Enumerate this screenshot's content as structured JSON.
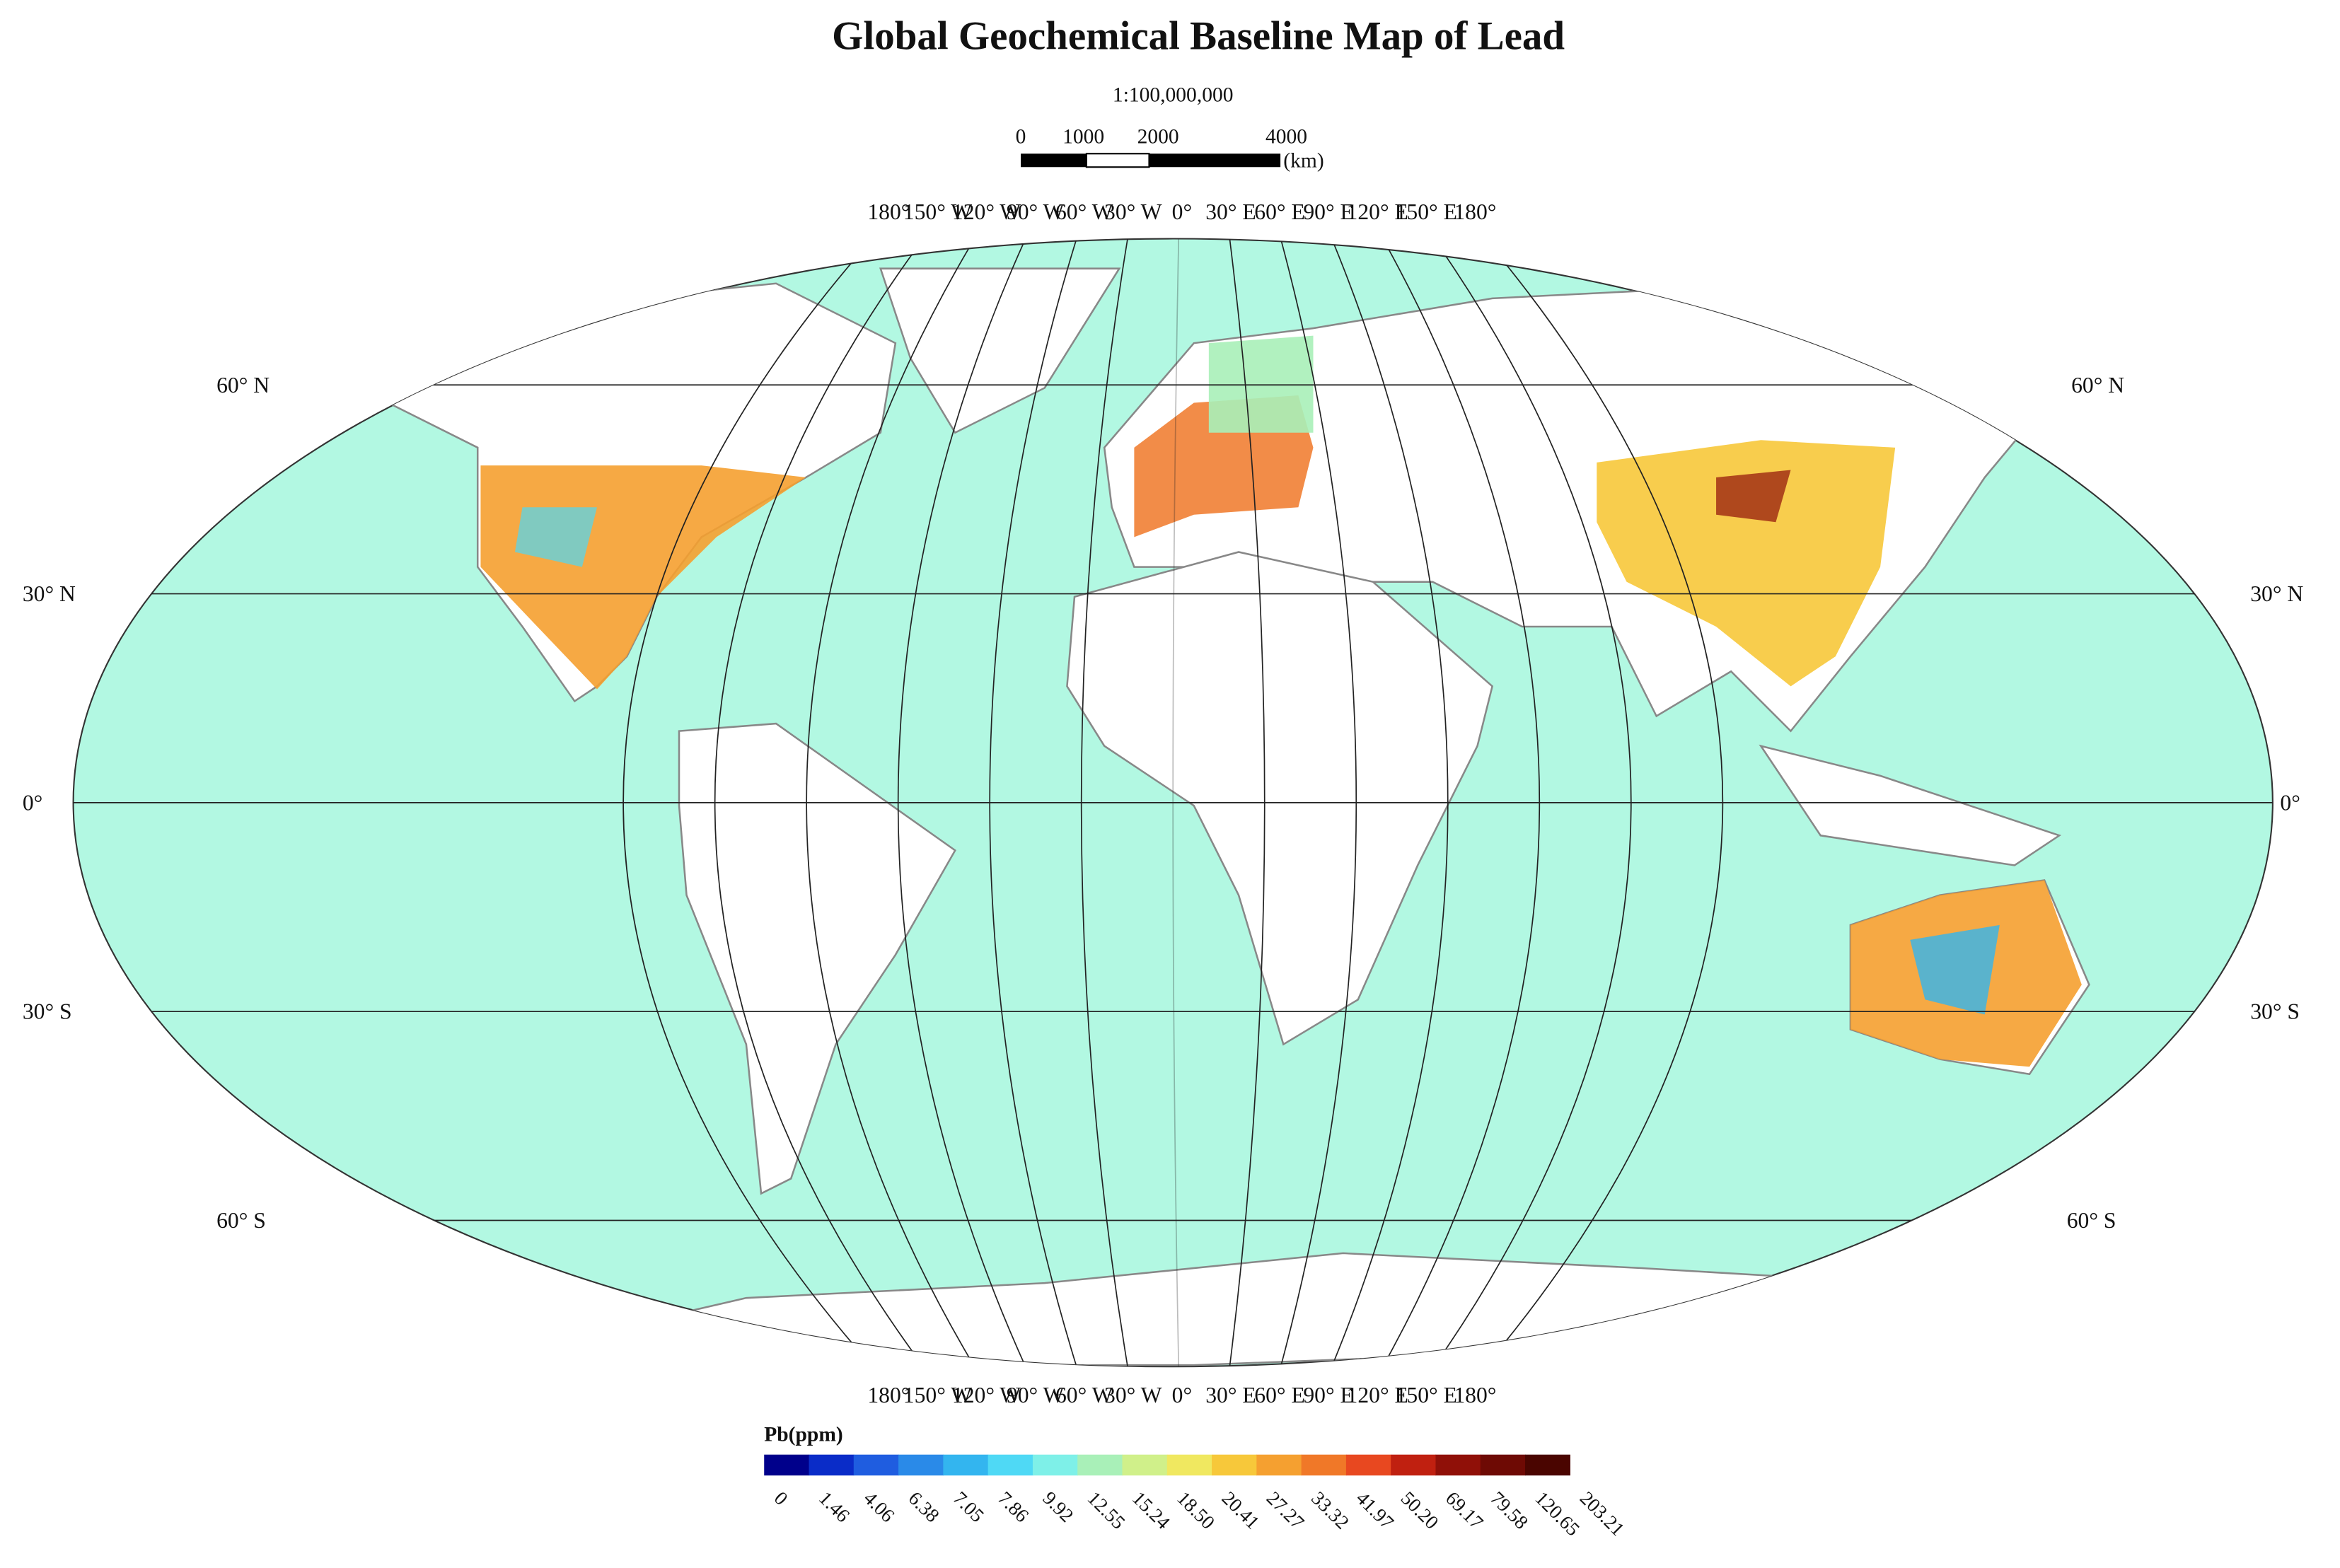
{
  "title": "Global Geochemical Baseline Map of Lead",
  "scale": "1:100,000,000",
  "scale_bar": {
    "labels": [
      "0",
      "1000",
      "2000",
      "4000"
    ],
    "unit": "(km)"
  },
  "longitude_labels": [
    "180°",
    "150° W",
    "120° W",
    "90° W",
    "60° W",
    "30° W",
    "0°",
    "30° E",
    "60° E",
    "90° E",
    "120° E",
    "150° E",
    "180°"
  ],
  "latitude_labels": [
    "60° N",
    "30° N",
    "0°",
    "30° S",
    "60° S"
  ],
  "legend": {
    "title": "Pb(ppm)",
    "colors": [
      "#00008b",
      "#0a2cc8",
      "#1f5de0",
      "#2a8ae8",
      "#33b5ef",
      "#4fd9f5",
      "#7ef0e8",
      "#a9f0b8",
      "#d0f08a",
      "#f0e860",
      "#f7c83a",
      "#f5a030",
      "#f07828",
      "#e84820",
      "#c02010",
      "#901008",
      "#6e0a04",
      "#4a0500"
    ],
    "labels": [
      "0",
      "1.46",
      "4.06",
      "6.38",
      "7.05",
      "7.86",
      "9.92",
      "12.55",
      "15.24",
      "18.50",
      "20.41",
      "27.27",
      "33.32",
      "41.97",
      "50.20",
      "69.17",
      "79.58",
      "120.65",
      "203.21"
    ]
  }
}
